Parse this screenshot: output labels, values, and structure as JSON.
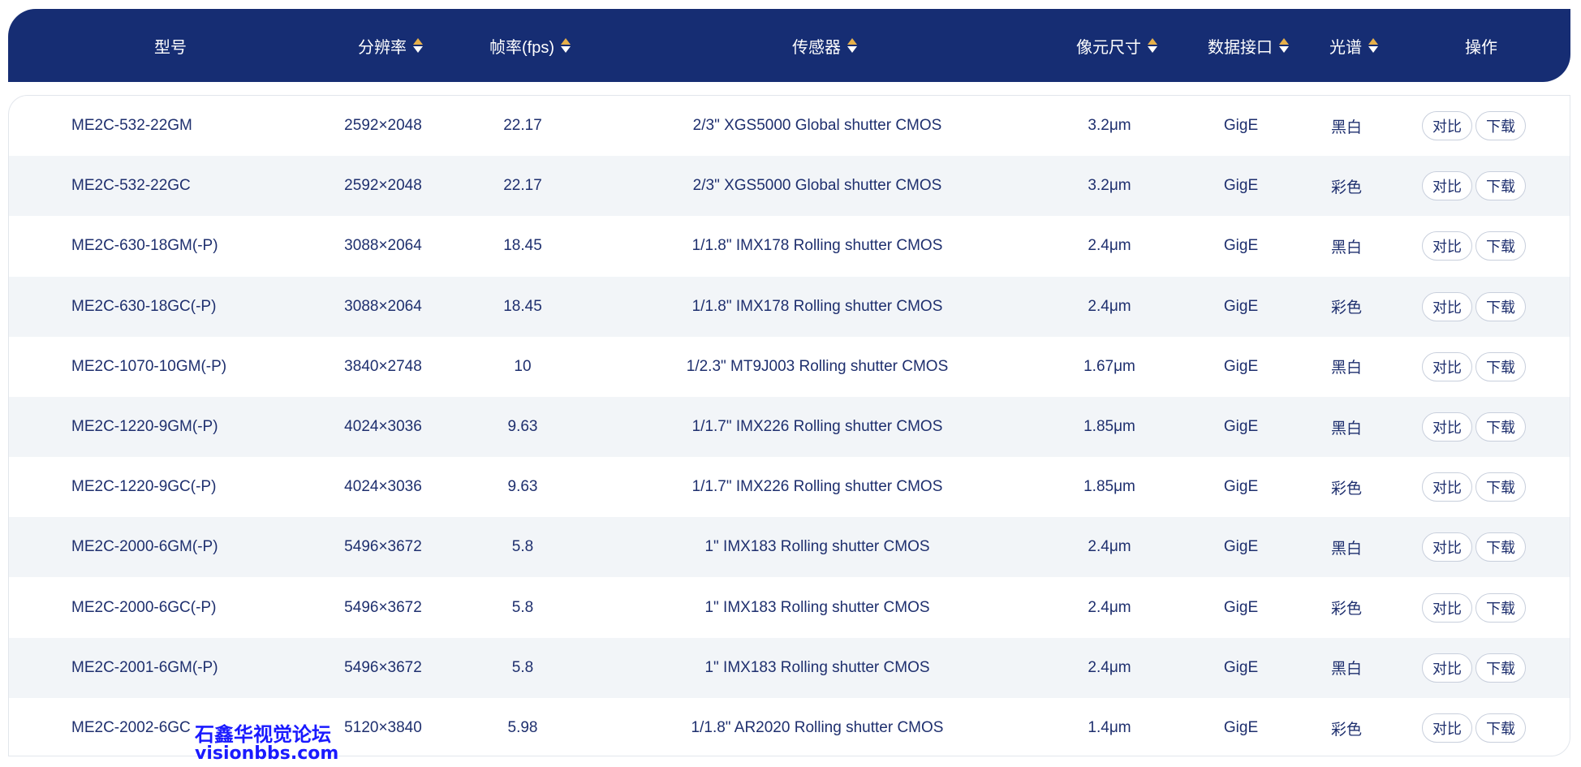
{
  "columns": [
    {
      "label": "型号",
      "sortable": false
    },
    {
      "label": "分辨率",
      "sortable": true
    },
    {
      "label": "帧率(fps)",
      "sortable": true
    },
    {
      "label": "传感器",
      "sortable": true
    },
    {
      "label": "像元尺寸",
      "sortable": true
    },
    {
      "label": "数据接口",
      "sortable": true
    },
    {
      "label": "光谱",
      "sortable": true
    },
    {
      "label": "操作",
      "sortable": false
    }
  ],
  "actions": {
    "compare": "对比",
    "download": "下载"
  },
  "rows": [
    [
      "ME2C-532-22GM",
      "2592×2048",
      "22.17",
      "2/3\" XGS5000 Global shutter CMOS",
      "3.2μm",
      "GigE",
      "黑白"
    ],
    [
      "ME2C-532-22GC",
      "2592×2048",
      "22.17",
      "2/3\" XGS5000 Global shutter CMOS",
      "3.2μm",
      "GigE",
      "彩色"
    ],
    [
      "ME2C-630-18GM(-P)",
      "3088×2064",
      "18.45",
      "1/1.8\" IMX178 Rolling shutter CMOS",
      "2.4μm",
      "GigE",
      "黑白"
    ],
    [
      "ME2C-630-18GC(-P)",
      "3088×2064",
      "18.45",
      "1/1.8\" IMX178 Rolling shutter CMOS",
      "2.4μm",
      "GigE",
      "彩色"
    ],
    [
      "ME2C-1070-10GM(-P)",
      "3840×2748",
      "10",
      "1/2.3\" MT9J003 Rolling shutter CMOS",
      "1.67μm",
      "GigE",
      "黑白"
    ],
    [
      "ME2C-1220-9GM(-P)",
      "4024×3036",
      "9.63",
      "1/1.7\" IMX226 Rolling shutter CMOS",
      "1.85μm",
      "GigE",
      "黑白"
    ],
    [
      "ME2C-1220-9GC(-P)",
      "4024×3036",
      "9.63",
      "1/1.7\" IMX226 Rolling shutter CMOS",
      "1.85μm",
      "GigE",
      "彩色"
    ],
    [
      "ME2C-2000-6GM(-P)",
      "5496×3672",
      "5.8",
      "1\" IMX183 Rolling shutter CMOS",
      "2.4μm",
      "GigE",
      "黑白"
    ],
    [
      "ME2C-2000-6GC(-P)",
      "5496×3672",
      "5.8",
      "1\" IMX183 Rolling shutter CMOS",
      "2.4μm",
      "GigE",
      "彩色"
    ],
    [
      "ME2C-2001-6GM(-P)",
      "5496×3672",
      "5.8",
      "1\" IMX183 Rolling shutter CMOS",
      "2.4μm",
      "GigE",
      "黑白"
    ],
    [
      "ME2C-2002-6GC",
      "5120×3840",
      "5.98",
      "1/1.8\" AR2020 Rolling shutter CMOS",
      "1.4μm",
      "GigE",
      "彩色"
    ]
  ],
  "watermark": {
    "line1": "石鑫华视觉论坛",
    "line2": "visionbbs.com"
  },
  "colors": {
    "header_bg": "#162d73",
    "text": "#1e2f6e",
    "stripe": "#f2f5f8",
    "sort_up": "#e6b04a"
  }
}
